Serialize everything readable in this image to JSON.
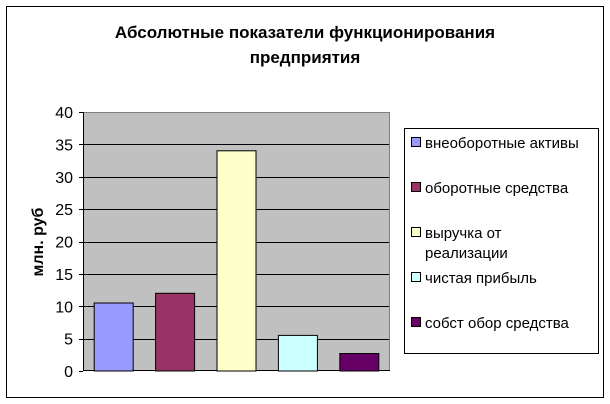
{
  "chart_data": {
    "type": "bar",
    "title": "Абсолютные показатели функционирования предприятия",
    "title_lines": [
      "Абсолютные показатели функционирования",
      "предприятия"
    ],
    "ylabel": "млн. руб",
    "xlabel": "",
    "ylim": [
      0,
      40
    ],
    "yticks": [
      0,
      5,
      10,
      15,
      20,
      25,
      30,
      35,
      40
    ],
    "grid": true,
    "legend_position": "right",
    "series": [
      {
        "name": "внеоборотные активы",
        "legend_lines": [
          "внеоборотные активы"
        ],
        "value": 10.5,
        "color": "#9999ff"
      },
      {
        "name": "оборотные средства",
        "legend_lines": [
          "оборотные средства"
        ],
        "value": 12,
        "color": "#993366"
      },
      {
        "name": "выручка от реализации",
        "legend_lines": [
          "выручка от",
          "реализации"
        ],
        "value": 34,
        "color": "#ffffcc"
      },
      {
        "name": "чистая прибыль",
        "legend_lines": [
          "чистая прибыль"
        ],
        "value": 5.5,
        "color": "#ccffff"
      },
      {
        "name": "собст обор средства",
        "legend_lines": [
          "собст обор средства"
        ],
        "value": 2.7,
        "color": "#660066"
      }
    ],
    "plot_background": "#c0c0c0"
  }
}
